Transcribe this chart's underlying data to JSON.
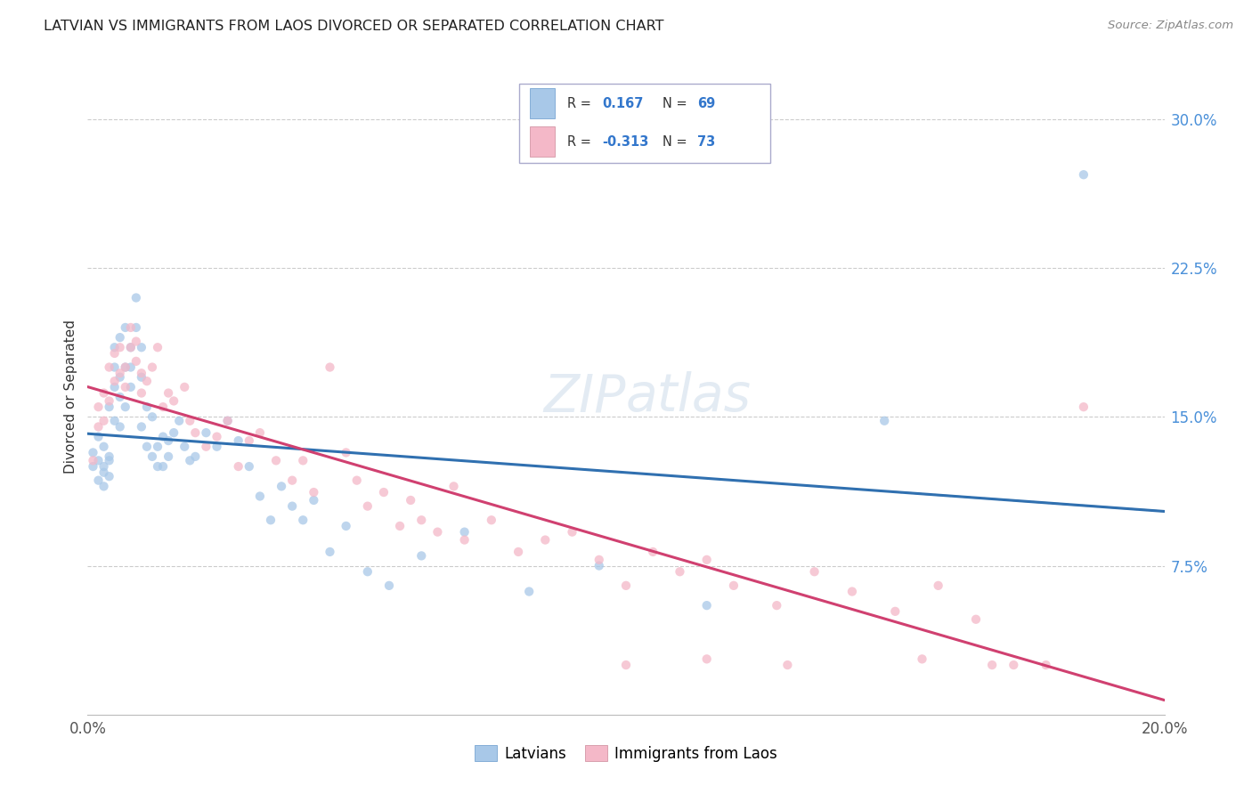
{
  "title": "LATVIAN VS IMMIGRANTS FROM LAOS DIVORCED OR SEPARATED CORRELATION CHART",
  "source": "Source: ZipAtlas.com",
  "ylabel": "Divorced or Separated",
  "xmin": 0.0,
  "xmax": 0.2,
  "ymin": 0.0,
  "ymax": 0.32,
  "y_ticks_right": [
    0.075,
    0.15,
    0.225,
    0.3
  ],
  "y_tick_labels_right": [
    "7.5%",
    "15.0%",
    "22.5%",
    "30.0%"
  ],
  "blue_color": "#a8c8e8",
  "pink_color": "#f4b8c8",
  "blue_line_color": "#3070b0",
  "pink_line_color": "#d04070",
  "dot_size": 55,
  "dot_alpha": 0.75,
  "latvian_x": [
    0.001,
    0.001,
    0.002,
    0.002,
    0.002,
    0.003,
    0.003,
    0.003,
    0.003,
    0.004,
    0.004,
    0.004,
    0.004,
    0.005,
    0.005,
    0.005,
    0.005,
    0.006,
    0.006,
    0.006,
    0.006,
    0.007,
    0.007,
    0.007,
    0.008,
    0.008,
    0.008,
    0.009,
    0.009,
    0.01,
    0.01,
    0.01,
    0.011,
    0.011,
    0.012,
    0.012,
    0.013,
    0.013,
    0.014,
    0.014,
    0.015,
    0.015,
    0.016,
    0.017,
    0.018,
    0.019,
    0.02,
    0.022,
    0.024,
    0.026,
    0.028,
    0.03,
    0.032,
    0.034,
    0.036,
    0.038,
    0.04,
    0.042,
    0.045,
    0.048,
    0.052,
    0.056,
    0.062,
    0.07,
    0.082,
    0.095,
    0.115,
    0.148,
    0.185
  ],
  "latvian_y": [
    0.125,
    0.132,
    0.118,
    0.128,
    0.14,
    0.115,
    0.135,
    0.122,
    0.125,
    0.12,
    0.13,
    0.155,
    0.128,
    0.148,
    0.165,
    0.175,
    0.185,
    0.19,
    0.17,
    0.16,
    0.145,
    0.175,
    0.195,
    0.155,
    0.185,
    0.175,
    0.165,
    0.195,
    0.21,
    0.185,
    0.17,
    0.145,
    0.155,
    0.135,
    0.15,
    0.13,
    0.135,
    0.125,
    0.14,
    0.125,
    0.138,
    0.13,
    0.142,
    0.148,
    0.135,
    0.128,
    0.13,
    0.142,
    0.135,
    0.148,
    0.138,
    0.125,
    0.11,
    0.098,
    0.115,
    0.105,
    0.098,
    0.108,
    0.082,
    0.095,
    0.072,
    0.065,
    0.08,
    0.092,
    0.062,
    0.075,
    0.055,
    0.148,
    0.272
  ],
  "laos_x": [
    0.001,
    0.002,
    0.002,
    0.003,
    0.003,
    0.004,
    0.004,
    0.005,
    0.005,
    0.006,
    0.006,
    0.007,
    0.007,
    0.008,
    0.008,
    0.009,
    0.009,
    0.01,
    0.01,
    0.011,
    0.012,
    0.013,
    0.014,
    0.015,
    0.016,
    0.018,
    0.019,
    0.02,
    0.022,
    0.024,
    0.026,
    0.028,
    0.03,
    0.032,
    0.035,
    0.038,
    0.04,
    0.042,
    0.045,
    0.048,
    0.05,
    0.052,
    0.055,
    0.058,
    0.06,
    0.062,
    0.065,
    0.068,
    0.07,
    0.075,
    0.08,
    0.085,
    0.09,
    0.095,
    0.1,
    0.105,
    0.11,
    0.115,
    0.12,
    0.128,
    0.135,
    0.142,
    0.15,
    0.158,
    0.165,
    0.172,
    0.1,
    0.115,
    0.13,
    0.155,
    0.168,
    0.178,
    0.185
  ],
  "laos_y": [
    0.128,
    0.145,
    0.155,
    0.148,
    0.162,
    0.158,
    0.175,
    0.168,
    0.182,
    0.172,
    0.185,
    0.165,
    0.175,
    0.185,
    0.195,
    0.178,
    0.188,
    0.172,
    0.162,
    0.168,
    0.175,
    0.185,
    0.155,
    0.162,
    0.158,
    0.165,
    0.148,
    0.142,
    0.135,
    0.14,
    0.148,
    0.125,
    0.138,
    0.142,
    0.128,
    0.118,
    0.128,
    0.112,
    0.175,
    0.132,
    0.118,
    0.105,
    0.112,
    0.095,
    0.108,
    0.098,
    0.092,
    0.115,
    0.088,
    0.098,
    0.082,
    0.088,
    0.092,
    0.078,
    0.065,
    0.082,
    0.072,
    0.078,
    0.065,
    0.055,
    0.072,
    0.062,
    0.052,
    0.065,
    0.048,
    0.025,
    0.025,
    0.028,
    0.025,
    0.028,
    0.025,
    0.025,
    0.155
  ]
}
